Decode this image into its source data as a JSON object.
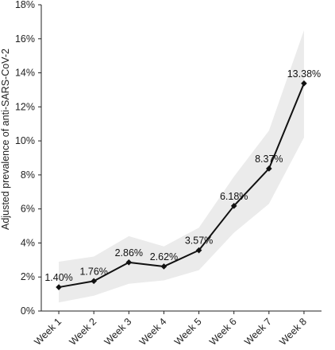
{
  "chart_data": {
    "type": "line",
    "title": "",
    "xlabel": "",
    "ylabel": "Adjusted prevalence of anti-SARS-CoV-2",
    "categories": [
      "Week 1",
      "Week 2",
      "Week 3",
      "Week 4",
      "Week 5",
      "Week 6",
      "Week 7",
      "Week 8"
    ],
    "series": [
      {
        "values": [
          1.4,
          1.76,
          2.86,
          2.62,
          3.57,
          6.18,
          8.37,
          13.38
        ],
        "labels": [
          "1.40%",
          "1.76%",
          "2.86%",
          "2.62%",
          "3.57%",
          "6.18%",
          "8.37%",
          "13.38%"
        ],
        "ci_lower": [
          0.5,
          0.9,
          1.6,
          1.8,
          2.4,
          4.6,
          6.3,
          10.2
        ],
        "ci_upper": [
          2.9,
          3.2,
          4.4,
          3.8,
          4.9,
          7.9,
          10.6,
          16.5
        ]
      }
    ],
    "ylim": [
      0,
      18
    ],
    "yticks": [
      0,
      2,
      4,
      6,
      8,
      10,
      12,
      14,
      16,
      18
    ],
    "ytick_labels": [
      "0%",
      "2%",
      "4%",
      "6%",
      "8%",
      "10%",
      "12%",
      "14%",
      "16%",
      "18%"
    ],
    "grid": false,
    "colors": {
      "line": "#111111",
      "band": "#ebebeb",
      "marker": "#111111"
    }
  }
}
